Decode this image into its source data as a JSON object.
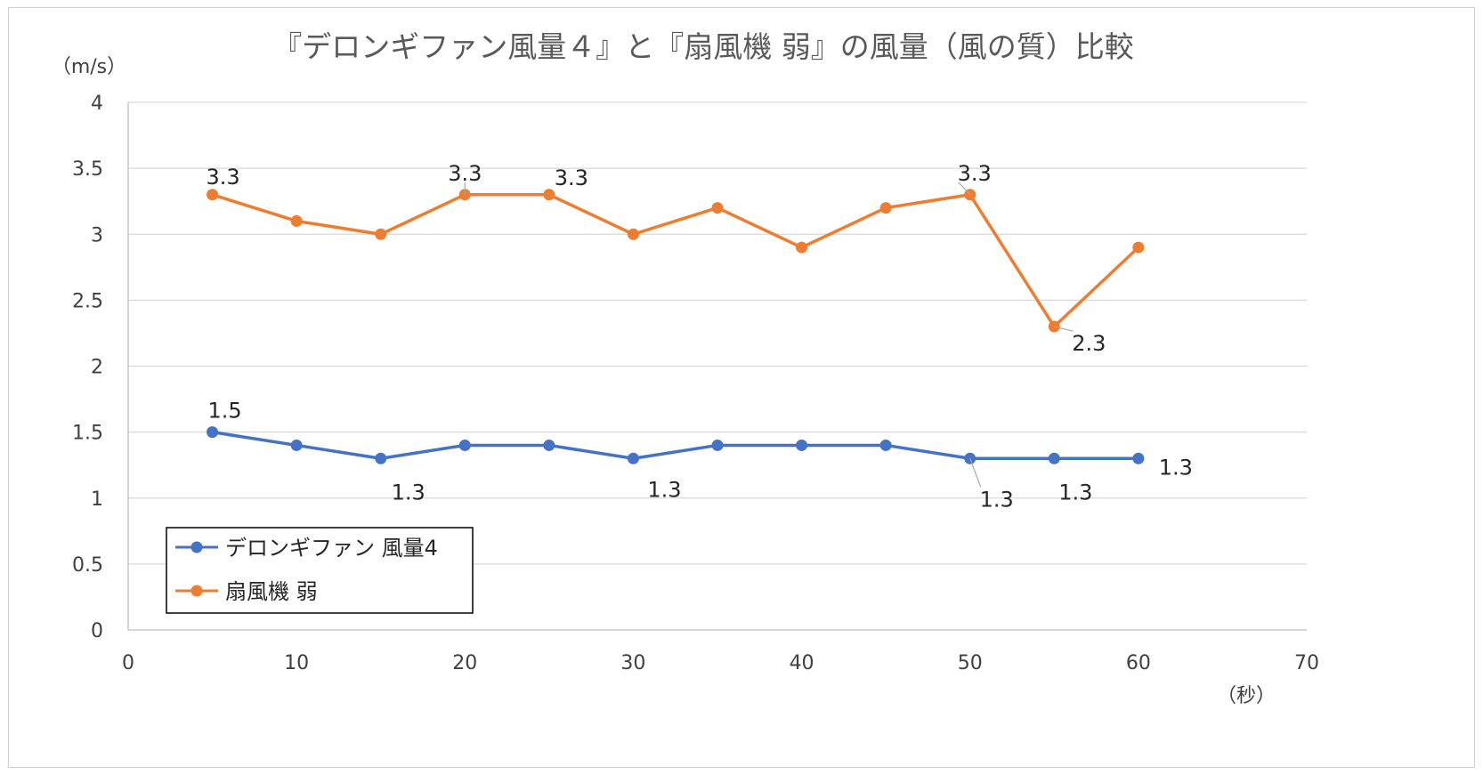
{
  "chart_data": {
    "type": "line",
    "title": "『デロンギファン風量４』と『扇風機 弱』の風量（風の質）比較",
    "ylabel": "（m/s）",
    "xlabel": "（秒）",
    "xlim": [
      0,
      70
    ],
    "ylim": [
      0,
      4
    ],
    "xticks": [
      "0",
      "10",
      "20",
      "30",
      "40",
      "50",
      "60",
      "70"
    ],
    "yticks": [
      "0",
      "0.5",
      "1",
      "1.5",
      "2",
      "2.5",
      "3",
      "3.5",
      "4"
    ],
    "grid": "horizontal",
    "legend_position": "bottom-left",
    "x": [
      5,
      10,
      15,
      20,
      25,
      30,
      35,
      40,
      45,
      50,
      55,
      60
    ],
    "series": [
      {
        "name": "デロンギファン 風量4",
        "color": "#4472C4",
        "values": [
          1.5,
          1.4,
          1.3,
          1.4,
          1.4,
          1.3,
          1.4,
          1.4,
          1.4,
          1.3,
          1.3,
          1.3
        ],
        "data_labels": [
          {
            "index": 0,
            "text": "1.5"
          },
          {
            "index": 2,
            "text": "1.3"
          },
          {
            "index": 5,
            "text": "1.3"
          },
          {
            "index": 9,
            "text": "1.3"
          },
          {
            "index": 10,
            "text": "1.3"
          },
          {
            "index": 11,
            "text": "1.3"
          }
        ]
      },
      {
        "name": "扇風機 弱",
        "color": "#ED7D31",
        "values": [
          3.3,
          3.1,
          3.0,
          3.3,
          3.3,
          3.0,
          3.2,
          2.9,
          3.2,
          3.3,
          2.3,
          2.9
        ],
        "data_labels": [
          {
            "index": 0,
            "text": "3.3"
          },
          {
            "index": 3,
            "text": "3.3"
          },
          {
            "index": 4,
            "text": "3.3"
          },
          {
            "index": 9,
            "text": "3.3"
          },
          {
            "index": 10,
            "text": "2.3"
          }
        ]
      }
    ]
  }
}
